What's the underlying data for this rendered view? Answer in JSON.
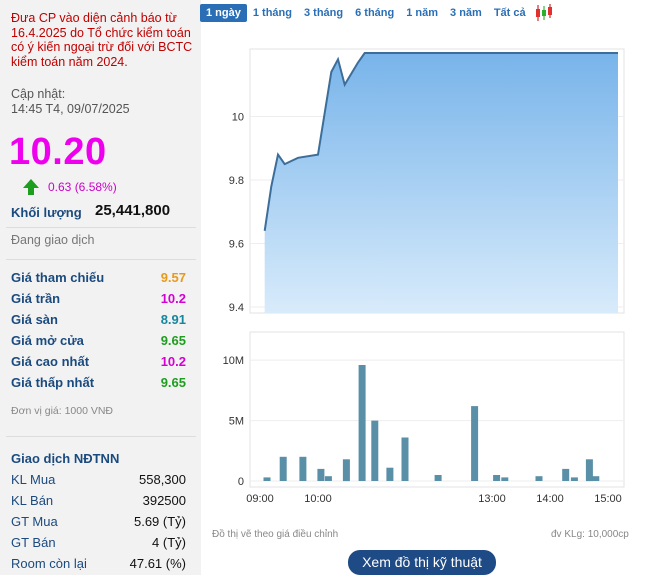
{
  "warning": "Đưa CP vào diện cảnh báo từ 16.4.2025 do Tổ chức kiểm toán có ý kiến ngoại trừ đối với BCTC kiểm toán năm 2024.",
  "update_label": "Cập nhật:",
  "update_time": "14:45 T4, 09/07/2025",
  "price": "10.20",
  "change": "0.63 (6.58%)",
  "volume_label": "Khối lượng",
  "volume": "25,441,800",
  "trading_status": "Đang giao dịch",
  "colors": {
    "up": "#1e9e1e",
    "ceiling": "#ee00ee",
    "reference": "#f0a020",
    "floor": "#1fa8c9",
    "accent": "#2a6fb5"
  },
  "prices": [
    {
      "label": "Giá tham chiếu",
      "value": "9.57",
      "color": "#e89a1a"
    },
    {
      "label": "Giá trần",
      "value": "10.2",
      "color": "#d400d4"
    },
    {
      "label": "Giá sàn",
      "value": "8.91",
      "color": "#17859e"
    },
    {
      "label": "Giá mở cửa",
      "value": "9.65",
      "color": "#1e9e1e"
    },
    {
      "label": "Giá cao nhất",
      "value": "10.2",
      "color": "#d400d4"
    },
    {
      "label": "Giá thấp nhất",
      "value": "9.65",
      "color": "#1e9e1e"
    }
  ],
  "unit_note": "Đơn vị giá: 1000 VNĐ",
  "foreign_title": "Giao dịch NĐTNN",
  "foreign": [
    {
      "label": "KL Mua",
      "value": "558,300"
    },
    {
      "label": "KL Bán",
      "value": "392500"
    },
    {
      "label": "GT Mua",
      "value": "5.69 (Tỷ)"
    },
    {
      "label": "GT Bán",
      "value": "4 (Tỷ)"
    },
    {
      "label": "Room còn lại",
      "value": "47.61 (%)"
    }
  ],
  "tabs": [
    "1 ngày",
    "1 tháng",
    "3 tháng",
    "6 tháng",
    "1 năm",
    "3 năm",
    "Tất cả"
  ],
  "active_tab": 0,
  "candle_icon": "candlestick-icon",
  "chart_note_left": "Đồ thị vẽ theo giá điều chỉnh",
  "chart_note_right": "đv KLg: 10,000cp",
  "button_label": "Xem đồ thị kỹ thuật",
  "chart_data": [
    {
      "type": "area",
      "ylim": [
        9.4,
        10.2
      ],
      "yticks": [
        "9.4",
        "9.6",
        "9.8",
        "10"
      ],
      "x": [
        "09:05",
        "09:10",
        "09:15",
        "09:20",
        "09:25",
        "09:30",
        "09:45",
        "09:55",
        "10:00",
        "10:05",
        "10:15",
        "10:20",
        "10:30",
        "10:40",
        "11:00",
        "13:00",
        "14:00",
        "14:30",
        "15:00"
      ],
      "values": [
        9.64,
        9.78,
        9.88,
        9.85,
        9.86,
        9.87,
        9.88,
        10.14,
        10.18,
        10.1,
        10.17,
        10.2,
        10.2,
        10.2,
        10.2,
        10.2,
        10.2,
        10.2,
        10.2
      ]
    },
    {
      "type": "bar",
      "yticks": [
        "0",
        "5M",
        "10M"
      ],
      "ylim": [
        0,
        12
      ],
      "xticks": [
        "09:00",
        "10:00",
        "13:00",
        "14:00",
        "15:00"
      ],
      "x": [
        0.12,
        0.4,
        0.74,
        1.05,
        1.18,
        1.49,
        1.76,
        1.98,
        2.24,
        2.5,
        3.07,
        3.7,
        4.08,
        4.22,
        4.81,
        5.27,
        5.42,
        5.68,
        5.79
      ],
      "values": [
        0.3,
        2.0,
        2.0,
        1.0,
        0.4,
        1.8,
        9.6,
        5.0,
        1.1,
        3.6,
        0.5,
        6.2,
        0.5,
        0.3,
        0.4,
        1.0,
        0.3,
        1.8,
        0.4
      ]
    }
  ]
}
